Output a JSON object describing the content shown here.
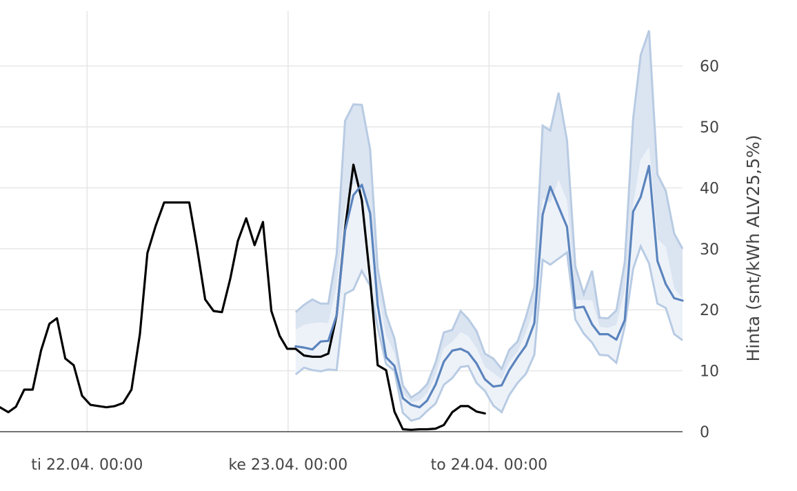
{
  "colors": {
    "actual": "#000000",
    "forecast": "#5b84bd",
    "band_outer_fill": "#dbe4f1",
    "band_inner_fill": "#edf2f9",
    "band_edge": "#b8cbe3",
    "grid": "#e6e6e6",
    "zero_line": "#444444"
  },
  "chart_data": {
    "type": "line",
    "ylabel": "Hinta (snt/kWh ALV25,5%)",
    "ylim": [
      0,
      69
    ],
    "y_axis_side": "right",
    "grid": true,
    "y_ticks": [
      {
        "value": 0,
        "label": "0"
      },
      {
        "value": 10,
        "label": "10"
      },
      {
        "value": 20,
        "label": "20"
      },
      {
        "value": 30,
        "label": "30"
      },
      {
        "value": 40,
        "label": "40"
      },
      {
        "value": 50,
        "label": "50"
      },
      {
        "value": 60,
        "label": "60"
      }
    ],
    "x_ticks": [
      {
        "hours": 0,
        "label": "ti 22.04. 00:00"
      },
      {
        "hours": 24,
        "label": "ke 23.04. 00:00"
      },
      {
        "hours": 48,
        "label": "to 24.04. 00:00"
      }
    ],
    "xlim_hours": [
      -10.4,
      71.1
    ],
    "x_unit": "hours relative to ti 22.04. 00:00",
    "series": [
      {
        "role": "actual",
        "x": [
          -10.4,
          -9.4,
          -8.5,
          -7.5,
          -6.5,
          -5.5,
          -4.5,
          -3.6,
          -2.6,
          -1.6,
          -0.6,
          0.4,
          1.4,
          2.3,
          3.3,
          4.3,
          5.3,
          6.3,
          7.2,
          8.2,
          9.2,
          10.2,
          11.2,
          12.2,
          13.1,
          14.1,
          15.1,
          16.1,
          17.1,
          18.0,
          19.0,
          20.0,
          21.0,
          22.0,
          23.0,
          23.9,
          24.9,
          25.9,
          26.9,
          27.9,
          28.8,
          29.8,
          30.8,
          31.8,
          32.8,
          33.8,
          34.7,
          35.7,
          36.7,
          37.7,
          38.7,
          39.7,
          40.6,
          41.6,
          42.6,
          43.6,
          44.6,
          45.5,
          46.5,
          47.5
        ],
        "y": [
          4.0,
          3.2,
          4.1,
          6.9,
          6.9,
          13.3,
          17.7,
          18.6,
          12.0,
          10.9,
          5.9,
          4.4,
          4.2,
          4.0,
          4.2,
          4.7,
          6.9,
          16.0,
          29.3,
          33.8,
          37.6,
          37.6,
          37.6,
          37.6,
          30.4,
          21.7,
          19.8,
          19.6,
          25.1,
          31.3,
          35.0,
          30.6,
          34.4,
          19.8,
          15.7,
          13.6,
          13.6,
          12.5,
          12.3,
          12.3,
          12.8,
          19.1,
          33.3,
          43.8,
          38.0,
          25.0,
          10.9,
          10.1,
          3.3,
          0.4,
          0.3,
          0.4,
          0.4,
          0.5,
          1.1,
          3.2,
          4.2,
          4.2,
          3.3,
          3.0
        ]
      },
      {
        "role": "forecast",
        "x": [
          24.9,
          25.9,
          26.9,
          27.9,
          28.8,
          29.8,
          30.8,
          31.8,
          32.8,
          33.8,
          34.7,
          35.7,
          36.7,
          37.7,
          38.7,
          39.7,
          40.6,
          41.6,
          42.6,
          43.6,
          44.6,
          45.5,
          46.5,
          47.5,
          48.5,
          49.5,
          50.4,
          51.4,
          52.4,
          53.4,
          54.4,
          55.3,
          56.3,
          57.3,
          58.3,
          59.3,
          60.3,
          61.2,
          62.2,
          63.2,
          64.2,
          65.2,
          66.1,
          67.1,
          68.1,
          69.1,
          70.1,
          71.1
        ],
        "y": [
          14.0,
          13.8,
          13.5,
          14.8,
          14.9,
          19.1,
          33.0,
          38.8,
          40.5,
          35.8,
          20.8,
          12.2,
          10.8,
          5.5,
          4.4,
          4.0,
          5.1,
          7.7,
          11.5,
          13.3,
          13.6,
          13.0,
          11.2,
          8.6,
          7.4,
          7.6,
          10.1,
          12.2,
          14.1,
          17.8,
          35.6,
          40.2,
          36.9,
          33.6,
          20.3,
          20.5,
          17.6,
          16.0,
          16.0,
          15.1,
          18.3,
          36.1,
          38.5,
          43.6,
          28.0,
          24.2,
          21.9,
          21.5
        ]
      }
    ],
    "band": {
      "x": [
        24.9,
        25.9,
        26.9,
        27.9,
        28.8,
        29.8,
        30.8,
        31.8,
        32.8,
        33.8,
        34.7,
        35.7,
        36.7,
        37.7,
        38.7,
        39.7,
        40.6,
        41.6,
        42.6,
        43.6,
        44.6,
        45.5,
        46.5,
        47.5,
        48.5,
        49.5,
        50.4,
        51.4,
        52.4,
        53.4,
        54.4,
        55.3,
        56.3,
        57.3,
        58.3,
        59.3,
        60.3,
        61.2,
        62.2,
        63.2,
        64.2,
        65.2,
        66.1,
        67.1,
        68.1,
        69.1,
        70.1,
        71.1
      ],
      "upper": [
        19.6,
        20.8,
        21.7,
        21.0,
        21.0,
        29.2,
        51.0,
        53.7,
        53.6,
        46.3,
        26.8,
        19.2,
        15.3,
        7.6,
        5.6,
        6.5,
        7.8,
        11.3,
        16.3,
        16.7,
        19.8,
        18.5,
        16.5,
        12.8,
        12.0,
        10.3,
        13.4,
        14.8,
        18.8,
        23.7,
        50.2,
        49.4,
        55.6,
        47.8,
        27.1,
        22.6,
        26.4,
        18.7,
        18.6,
        19.9,
        27.8,
        51.3,
        61.8,
        65.8,
        42.2,
        39.5,
        32.5,
        30.0
      ],
      "mid": [
        16.7,
        17.5,
        17.8,
        17.9,
        17.8,
        23.8,
        36.8,
        40.7,
        40.5,
        36.5,
        22.8,
        15.8,
        12.8,
        6.3,
        4.8,
        5.1,
        6.3,
        9.2,
        13.7,
        14.7,
        16.3,
        15.7,
        13.7,
        10.6,
        9.6,
        8.6,
        11.4,
        13.1,
        16.2,
        20.1,
        38.2,
        37.5,
        41.3,
        37.8,
        21.6,
        21.6,
        21.5,
        17.2,
        17.0,
        17.5,
        23.1,
        37.2,
        44.6,
        46.7,
        31.6,
        30.3,
        23.5,
        21.8
      ],
      "lower": [
        9.4,
        10.5,
        10.1,
        9.9,
        10.2,
        10.1,
        22.6,
        23.3,
        26.4,
        23.9,
        17.1,
        11.1,
        10.0,
        3.1,
        1.8,
        2.2,
        3.4,
        4.6,
        7.7,
        8.8,
        10.6,
        10.8,
        8.0,
        6.7,
        4.3,
        3.2,
        6.0,
        8.0,
        9.5,
        12.6,
        28.2,
        27.4,
        28.4,
        29.4,
        18.4,
        16.1,
        14.6,
        12.6,
        12.5,
        11.3,
        17.3,
        26.7,
        30.4,
        27.6,
        21.0,
        20.3,
        16.0,
        15.0
      ]
    }
  }
}
